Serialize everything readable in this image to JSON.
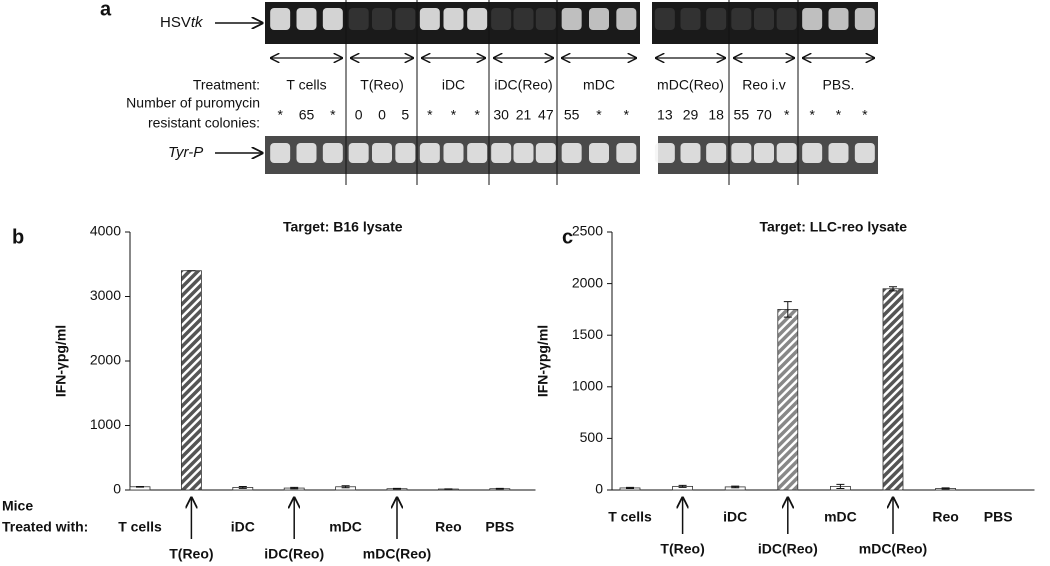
{
  "panel_a": {
    "label": "a",
    "gene_label": {
      "main": "HSV",
      "italic": "tk"
    },
    "control_label": "Tyr-P",
    "treatment_label": "Treatment:",
    "colonies_label": [
      "Number of puromycin",
      "resistant colonies:"
    ],
    "groups": [
      {
        "name": "T cells",
        "colonies": [
          "*",
          65,
          "*"
        ]
      },
      {
        "name": "T(Reo)",
        "colonies": [
          0,
          0,
          5
        ]
      },
      {
        "name": "iDC",
        "colonies": [
          "*",
          "*",
          "*"
        ]
      },
      {
        "name": "iDC(Reo)",
        "colonies": [
          30,
          21,
          47
        ]
      },
      {
        "name": "mDC",
        "colonies": [
          55,
          "*",
          "*"
        ]
      },
      {
        "name": "mDC(Reo)",
        "colonies": [
          13,
          29,
          18
        ]
      },
      {
        "name": "Reo i.v",
        "colonies": [
          55,
          70,
          "*"
        ]
      },
      {
        "name": "PBS.",
        "colonies": [
          "*",
          "*",
          "*"
        ]
      }
    ]
  },
  "chart_data": [
    {
      "type": "bar",
      "panel": "b",
      "title": "Target: B16 lysate",
      "y_label": "IFN-γpg/ml",
      "x_label": [
        "Mice",
        "Treated with:"
      ],
      "categories": [
        "T cells",
        "T(Reo)",
        "iDC",
        "iDC(Reo)",
        "mDC",
        "mDC(Reo)",
        "Reo",
        "PBS"
      ],
      "values": [
        50,
        3400,
        40,
        30,
        50,
        20,
        15,
        20
      ],
      "errors": [
        5,
        0,
        15,
        10,
        15,
        5,
        3,
        5
      ],
      "colors": [
        "#ffffff",
        "#555555",
        "#ffffff",
        "#ffffff",
        "#ffffff",
        "#ffffff",
        "#ffffff",
        "#ffffff"
      ],
      "ylim": [
        0,
        4000
      ],
      "yticks": [
        0,
        1000,
        2000,
        3000,
        4000
      ]
    },
    {
      "type": "bar",
      "panel": "c",
      "title": "Target: LLC-reo lysate",
      "y_label": "IFN-γpg/ml",
      "categories": [
        "T cells",
        "T(Reo)",
        "iDC",
        "iDC(Reo)",
        "mDC",
        "mDC(Reo)",
        "Reo",
        "PBS"
      ],
      "values": [
        20,
        35,
        30,
        1750,
        35,
        1950,
        15,
        0
      ],
      "errors": [
        5,
        10,
        8,
        75,
        20,
        20,
        5,
        0
      ],
      "colors": [
        "#ffffff",
        "#ffffff",
        "#ffffff",
        "#888888",
        "#ffffff",
        "#555555",
        "#ffffff",
        "#ffffff"
      ],
      "ylim": [
        0,
        2500
      ],
      "yticks": [
        0,
        500,
        1000,
        1500,
        2000,
        2500
      ]
    }
  ]
}
